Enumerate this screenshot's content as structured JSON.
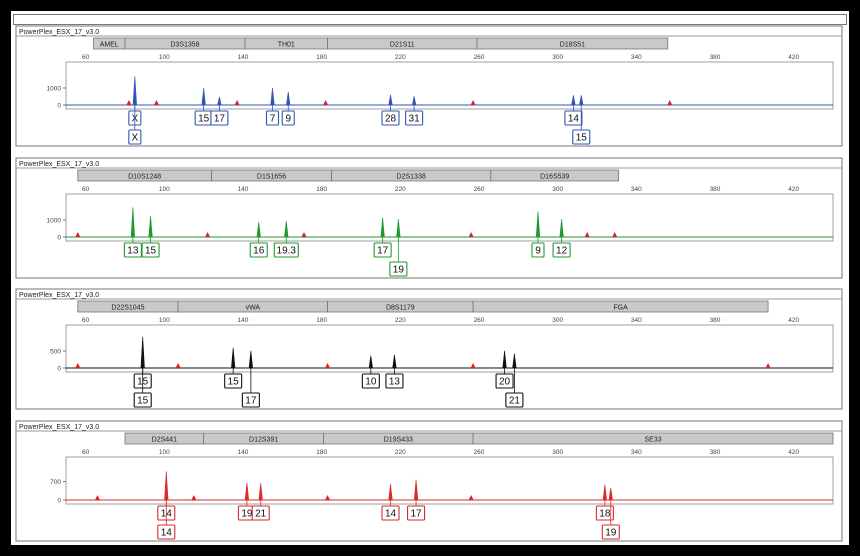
{
  "chart_data": [
    {
      "type": "electropherogram",
      "title": "PowerPlex_ESX_17_v3.0",
      "dye_color": "#2f55b7",
      "xlim": [
        50,
        440
      ],
      "x_ticks": [
        60,
        100,
        140,
        180,
        220,
        260,
        300,
        340,
        380,
        420
      ],
      "y_ticks": [
        0,
        1000
      ],
      "loci": [
        {
          "name": "AMEL",
          "start": 64,
          "end": 80
        },
        {
          "name": "D3S1358",
          "start": 80,
          "end": 141
        },
        {
          "name": "TH01",
          "start": 141,
          "end": 183
        },
        {
          "name": "D21S11",
          "start": 183,
          "end": 259
        },
        {
          "name": "D18S51",
          "start": 259,
          "end": 356
        }
      ],
      "peaks": [
        {
          "x": 85,
          "y": 1700
        },
        {
          "x": 120,
          "y": 1000
        },
        {
          "x": 128,
          "y": 480
        },
        {
          "x": 155,
          "y": 1000
        },
        {
          "x": 163,
          "y": 780
        },
        {
          "x": 215,
          "y": 600
        },
        {
          "x": 227,
          "y": 520
        },
        {
          "x": 308,
          "y": 570
        },
        {
          "x": 312,
          "y": 570
        }
      ],
      "ladder_peaks": [
        82,
        96,
        137,
        182,
        257,
        357
      ],
      "calls": [
        {
          "label": "X",
          "x": 85,
          "row": 0
        },
        {
          "label": "X",
          "x": 85,
          "row": 1
        },
        {
          "label": "15",
          "x": 120,
          "row": 0
        },
        {
          "label": "17",
          "x": 128,
          "row": 0
        },
        {
          "label": "7",
          "x": 155,
          "row": 0
        },
        {
          "label": "9",
          "x": 163,
          "row": 0
        },
        {
          "label": "28",
          "x": 215,
          "row": 0
        },
        {
          "label": "31",
          "x": 227,
          "row": 0
        },
        {
          "label": "14",
          "x": 308,
          "row": 0
        },
        {
          "label": "15",
          "x": 312,
          "row": 1
        }
      ]
    },
    {
      "type": "electropherogram",
      "title": "PowerPlex_ESX_17_v3.0",
      "dye_color": "#1f9a2f",
      "xlim": [
        50,
        440
      ],
      "x_ticks": [
        60,
        100,
        140,
        180,
        220,
        260,
        300,
        340,
        380,
        420
      ],
      "y_ticks": [
        0,
        1000
      ],
      "loci": [
        {
          "name": "D10S1248",
          "start": 56,
          "end": 124
        },
        {
          "name": "D1S1656",
          "start": 124,
          "end": 185
        },
        {
          "name": "D2S1338",
          "start": 185,
          "end": 266
        },
        {
          "name": "D16S539",
          "start": 266,
          "end": 331
        }
      ],
      "peaks": [
        {
          "x": 84,
          "y": 1750
        },
        {
          "x": 93,
          "y": 1250
        },
        {
          "x": 148,
          "y": 880
        },
        {
          "x": 162,
          "y": 950
        },
        {
          "x": 211,
          "y": 1150
        },
        {
          "x": 219,
          "y": 1050
        },
        {
          "x": 290,
          "y": 1500
        },
        {
          "x": 302,
          "y": 1050
        }
      ],
      "ladder_peaks": [
        56,
        122,
        171,
        256,
        315,
        329
      ],
      "calls": [
        {
          "label": "13",
          "x": 84,
          "row": 0
        },
        {
          "label": "15",
          "x": 93,
          "row": 0
        },
        {
          "label": "16",
          "x": 148,
          "row": 0
        },
        {
          "label": "19.3",
          "x": 162,
          "row": 0
        },
        {
          "label": "17",
          "x": 211,
          "row": 0
        },
        {
          "label": "19",
          "x": 219,
          "row": 1
        },
        {
          "label": "9",
          "x": 290,
          "row": 0
        },
        {
          "label": "12",
          "x": 302,
          "row": 0
        }
      ]
    },
    {
      "type": "electropherogram",
      "title": "PowerPlex_ESX_17_v3.0",
      "dye_color": "#111111",
      "xlim": [
        50,
        440
      ],
      "x_ticks": [
        60,
        100,
        140,
        180,
        220,
        260,
        300,
        340,
        380,
        420
      ],
      "y_ticks": [
        0,
        500
      ],
      "loci": [
        {
          "name": "D22S1045",
          "start": 56,
          "end": 107
        },
        {
          "name": "vWA",
          "start": 107,
          "end": 183
        },
        {
          "name": "D8S1179",
          "start": 183,
          "end": 257
        },
        {
          "name": "FGA",
          "start": 257,
          "end": 407
        }
      ],
      "peaks": [
        {
          "x": 89,
          "y": 920
        },
        {
          "x": 135,
          "y": 600
        },
        {
          "x": 144,
          "y": 510
        },
        {
          "x": 205,
          "y": 360
        },
        {
          "x": 217,
          "y": 390
        },
        {
          "x": 273,
          "y": 510
        },
        {
          "x": 278,
          "y": 420
        }
      ],
      "ladder_peaks": [
        56,
        107,
        183,
        257,
        407
      ],
      "calls": [
        {
          "label": "15",
          "x": 89,
          "row": 0
        },
        {
          "label": "15",
          "x": 89,
          "row": 1
        },
        {
          "label": "15",
          "x": 135,
          "row": 0
        },
        {
          "label": "17",
          "x": 144,
          "row": 1
        },
        {
          "label": "10",
          "x": 205,
          "row": 0
        },
        {
          "label": "13",
          "x": 217,
          "row": 0
        },
        {
          "label": "20",
          "x": 273,
          "row": 0
        },
        {
          "label": "21",
          "x": 278,
          "row": 1
        }
      ]
    },
    {
      "type": "electropherogram",
      "title": "PowerPlex_ESX_17_v3.0",
      "dye_color": "#d82a2a",
      "xlim": [
        50,
        440
      ],
      "x_ticks": [
        60,
        100,
        140,
        180,
        220,
        260,
        300,
        340,
        380,
        420
      ],
      "y_ticks": [
        0,
        700
      ],
      "loci": [
        {
          "name": "D2S441",
          "start": 80,
          "end": 120
        },
        {
          "name": "D12S391",
          "start": 120,
          "end": 181
        },
        {
          "name": "D19S433",
          "start": 181,
          "end": 257
        },
        {
          "name": "SE33",
          "start": 257,
          "end": 440
        }
      ],
      "peaks": [
        {
          "x": 101,
          "y": 1100
        },
        {
          "x": 142,
          "y": 660
        },
        {
          "x": 149,
          "y": 650
        },
        {
          "x": 215,
          "y": 610
        },
        {
          "x": 228,
          "y": 780
        },
        {
          "x": 324,
          "y": 590
        },
        {
          "x": 327,
          "y": 470
        }
      ],
      "ladder_peaks": [
        66,
        115,
        183,
        256
      ],
      "calls": [
        {
          "label": "14",
          "x": 101,
          "row": 0
        },
        {
          "label": "14",
          "x": 101,
          "row": 1
        },
        {
          "label": "19",
          "x": 142,
          "row": 0
        },
        {
          "label": "21",
          "x": 149,
          "row": 0
        },
        {
          "label": "14",
          "x": 215,
          "row": 0
        },
        {
          "label": "17",
          "x": 228,
          "row": 0
        },
        {
          "label": "18",
          "x": 324,
          "row": 0
        },
        {
          "label": "19",
          "x": 327,
          "row": 1
        }
      ]
    }
  ]
}
